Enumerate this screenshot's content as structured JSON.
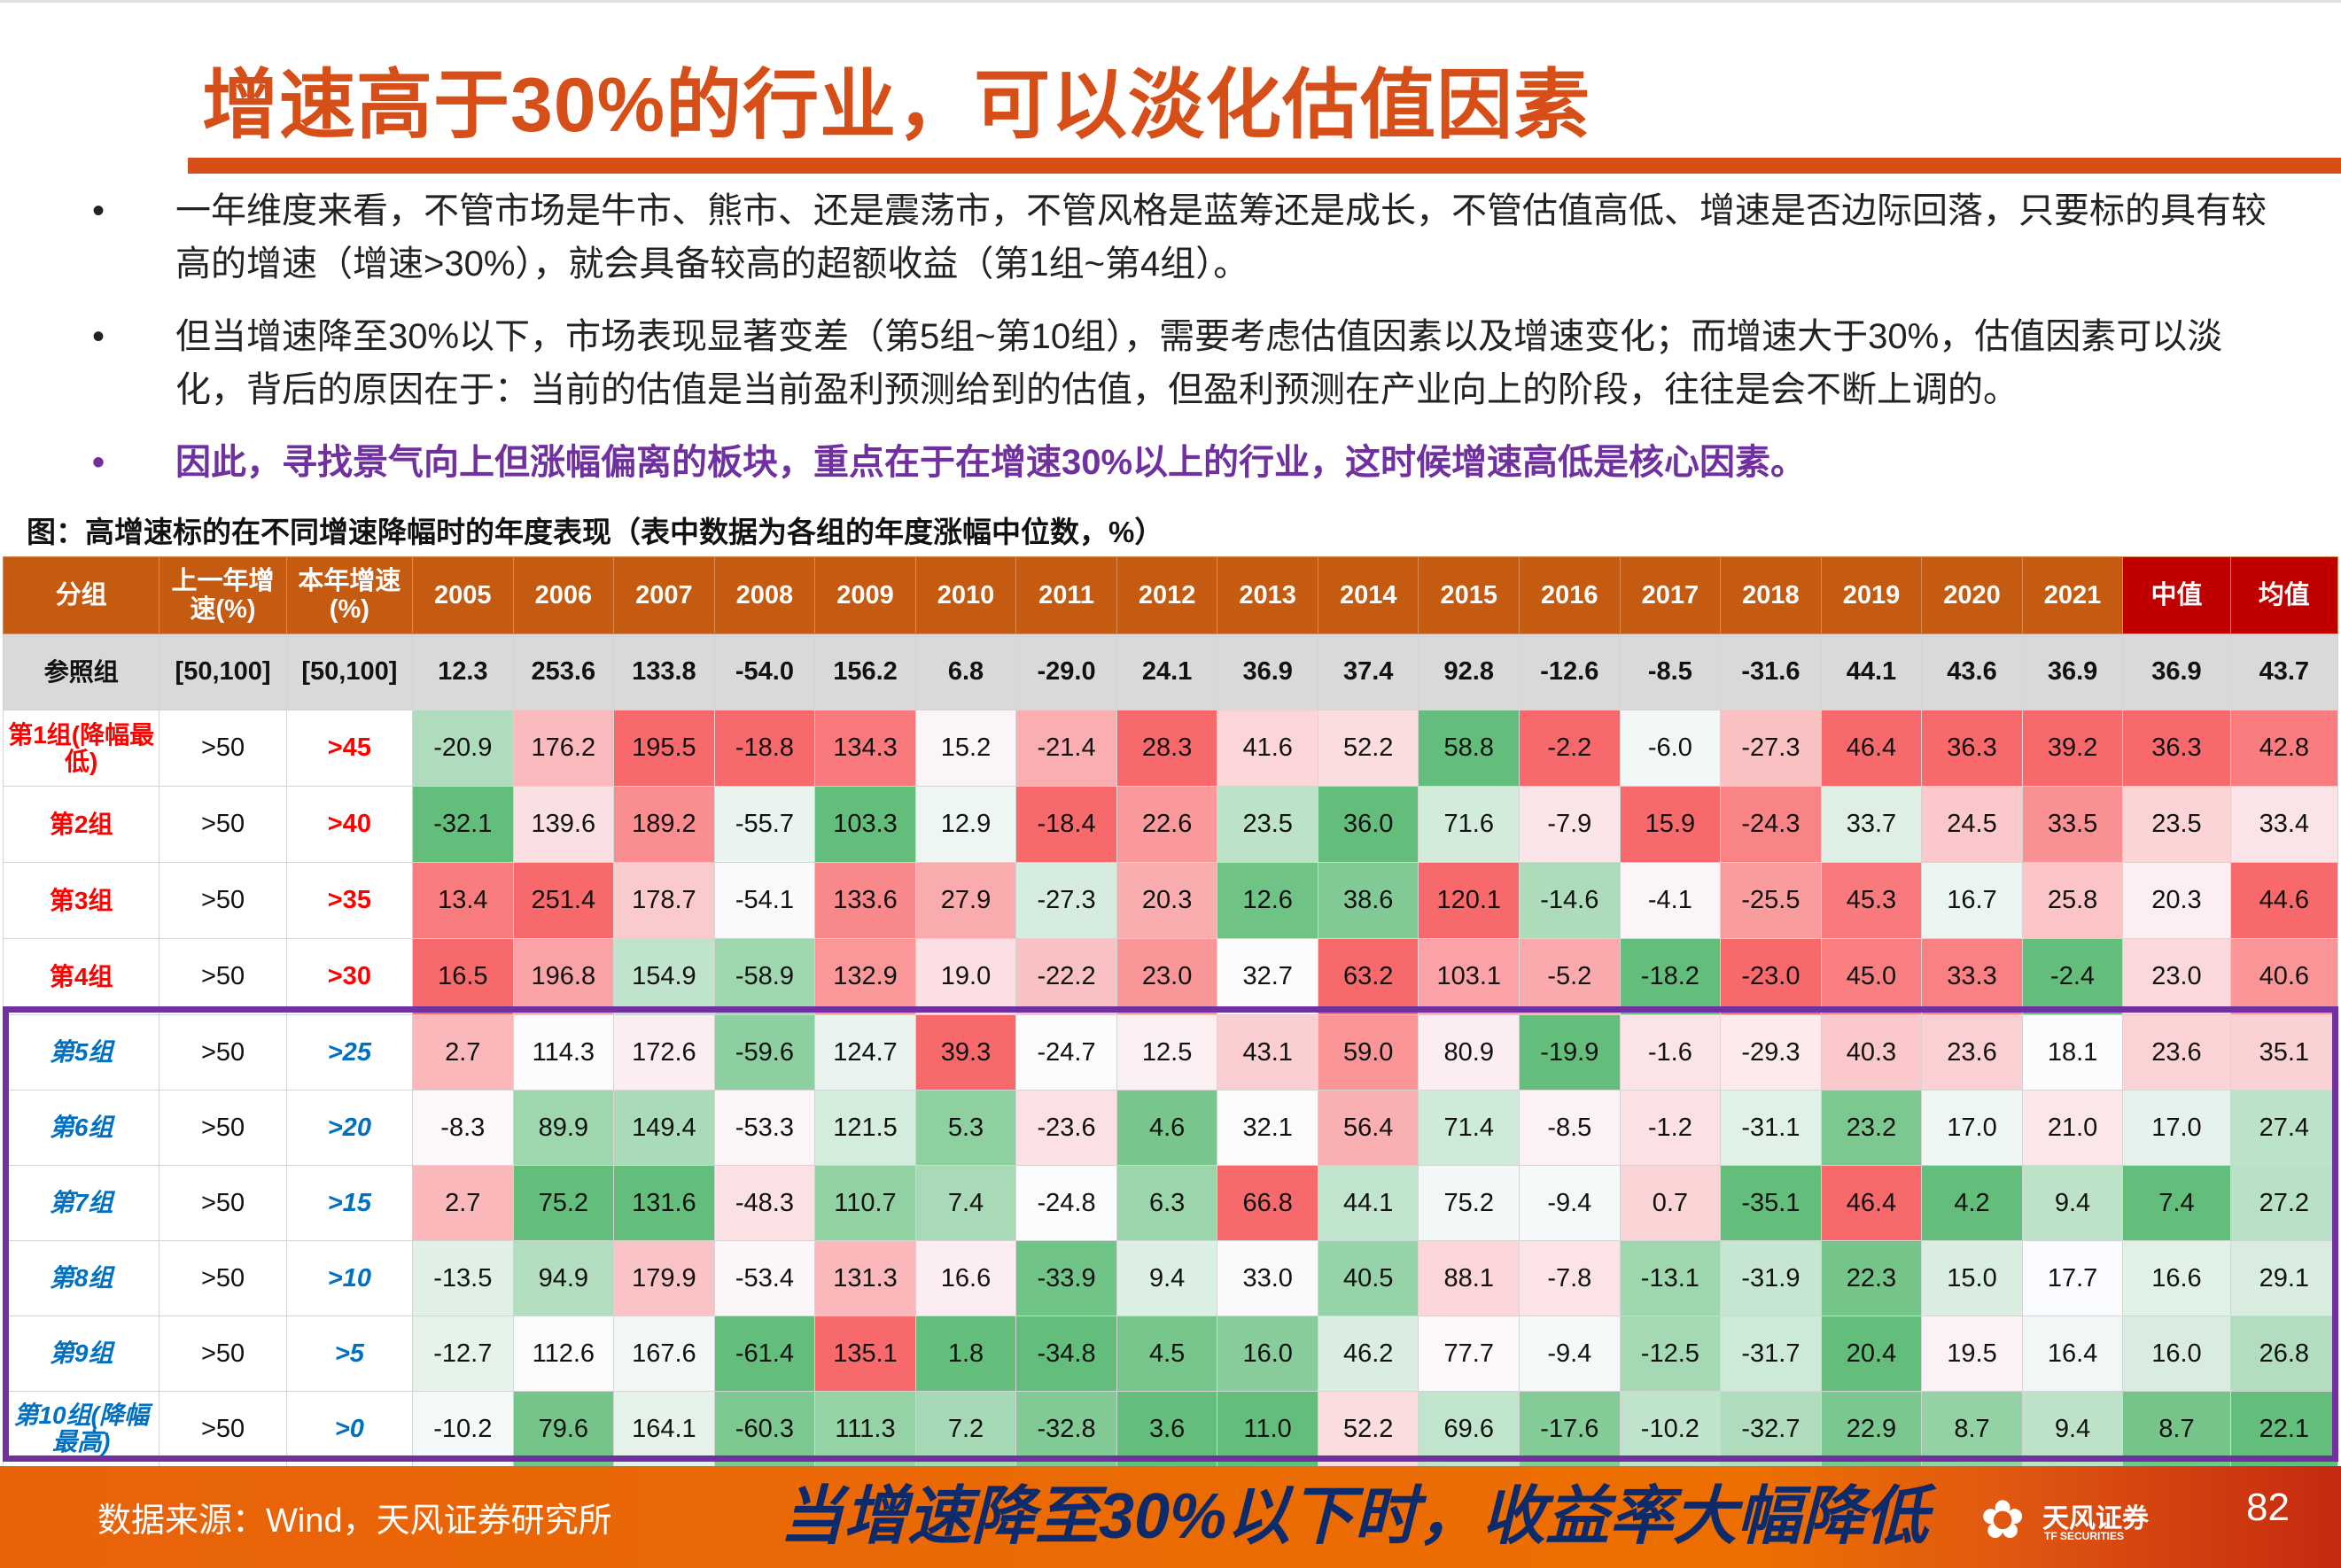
{
  "title": "增速高于30%的行业，可以淡化估值因素",
  "bullets": [
    "一年维度来看，不管市场是牛市、熊市、还是震荡市，不管风格是蓝筹还是成长，不管估值高低、增速是否边际回落，只要标的具有较高的增速（增速>30%），就会具备较高的超额收益（第1组~第4组）。",
    "但当增速降至30%以下，市场表现显著变差（第5组~第10组），需要考虑估值因素以及增速变化；而增速大于30%，估值因素可以淡化，背后的原因在于：当前的估值是当前盈利预测给到的估值，但盈利预测在产业向上的阶段，往往是会不断上调的。",
    "因此，寻找景气向上但涨幅偏离的板块，重点在于在增速30%以上的行业，这时候增速高低是核心因素。"
  ],
  "bullet_symbol": "•",
  "caption": "图：高增速标的在不同增速降幅时的年度表现（表中数据为各组的年度涨幅中位数，%）",
  "overlay_text": "当增速降至30%以下时，收益率大幅降低",
  "colors": {
    "accent": "#d64f18",
    "header": "#c55a11",
    "header_highlight": "#c00000",
    "box": "#7030a0",
    "scale_min": "#63be7b",
    "scale_mid": "#fcfcff",
    "scale_max": "#f8696b"
  },
  "table": {
    "headers": [
      "分组",
      "上一年增速(%)",
      "本年增速(%)",
      "2005",
      "2006",
      "2007",
      "2008",
      "2009",
      "2010",
      "2011",
      "2012",
      "2013",
      "2014",
      "2015",
      "2016",
      "2017",
      "2018",
      "2019",
      "2020",
      "2021",
      "中值",
      "均值"
    ],
    "reference": {
      "group": "参照组",
      "prev": "[50,100]",
      "cur": "[50,100]",
      "values": [
        "12.3",
        "253.6",
        "133.8",
        "-54.0",
        "156.2",
        "6.8",
        "-29.0",
        "24.1",
        "36.9",
        "37.4",
        "92.8",
        "-12.6",
        "-8.5",
        "-31.6",
        "44.1",
        "43.6",
        "36.9",
        "36.9",
        "43.7"
      ]
    },
    "rows": [
      {
        "group": "第1组(降幅最低)",
        "prev": ">50",
        "cur": ">45",
        "values": [
          "-20.9",
          "176.2",
          "195.5",
          "-18.8",
          "134.3",
          "15.2",
          "-21.4",
          "28.3",
          "41.6",
          "52.2",
          "58.8",
          "-2.2",
          "-6.0",
          "-27.3",
          "46.4",
          "36.3",
          "39.2",
          "36.3",
          "42.8"
        ]
      },
      {
        "group": "第2组",
        "prev": ">50",
        "cur": ">40",
        "values": [
          "-32.1",
          "139.6",
          "189.2",
          "-55.7",
          "103.3",
          "12.9",
          "-18.4",
          "22.6",
          "23.5",
          "36.0",
          "71.6",
          "-7.9",
          "15.9",
          "-24.3",
          "33.7",
          "24.5",
          "33.5",
          "23.5",
          "33.4"
        ]
      },
      {
        "group": "第3组",
        "prev": ">50",
        "cur": ">35",
        "values": [
          "13.4",
          "251.4",
          "178.7",
          "-54.1",
          "133.6",
          "27.9",
          "-27.3",
          "20.3",
          "12.6",
          "38.6",
          "120.1",
          "-14.6",
          "-4.1",
          "-25.5",
          "45.3",
          "16.7",
          "25.8",
          "20.3",
          "44.6"
        ]
      },
      {
        "group": "第4组",
        "prev": ">50",
        "cur": ">30",
        "values": [
          "16.5",
          "196.8",
          "154.9",
          "-58.9",
          "132.9",
          "19.0",
          "-22.2",
          "23.0",
          "32.7",
          "63.2",
          "103.1",
          "-5.2",
          "-18.2",
          "-23.0",
          "45.0",
          "33.3",
          "-2.4",
          "23.0",
          "40.6"
        ]
      },
      {
        "group": "第5组",
        "prev": ">50",
        "cur": ">25",
        "values": [
          "2.7",
          "114.3",
          "172.6",
          "-59.6",
          "124.7",
          "39.3",
          "-24.7",
          "12.5",
          "43.1",
          "59.0",
          "80.9",
          "-19.9",
          "-1.6",
          "-29.3",
          "40.3",
          "23.6",
          "18.1",
          "23.6",
          "35.1"
        ]
      },
      {
        "group": "第6组",
        "prev": ">50",
        "cur": ">20",
        "values": [
          "-8.3",
          "89.9",
          "149.4",
          "-53.3",
          "121.5",
          "5.3",
          "-23.6",
          "4.6",
          "32.1",
          "56.4",
          "71.4",
          "-8.5",
          "-1.2",
          "-31.1",
          "23.2",
          "17.0",
          "21.0",
          "17.0",
          "27.4"
        ]
      },
      {
        "group": "第7组",
        "prev": ">50",
        "cur": ">15",
        "values": [
          "2.7",
          "75.2",
          "131.6",
          "-48.3",
          "110.7",
          "7.4",
          "-24.8",
          "6.3",
          "66.8",
          "44.1",
          "75.2",
          "-9.4",
          "0.7",
          "-35.1",
          "46.4",
          "4.2",
          "9.4",
          "7.4",
          "27.2"
        ]
      },
      {
        "group": "第8组",
        "prev": ">50",
        "cur": ">10",
        "values": [
          "-13.5",
          "94.9",
          "179.9",
          "-53.4",
          "131.3",
          "16.6",
          "-33.9",
          "9.4",
          "33.0",
          "40.5",
          "88.1",
          "-7.8",
          "-13.1",
          "-31.9",
          "22.3",
          "15.0",
          "17.7",
          "16.6",
          "29.1"
        ]
      },
      {
        "group": "第9组",
        "prev": ">50",
        "cur": ">5",
        "values": [
          "-12.7",
          "112.6",
          "167.6",
          "-61.4",
          "135.1",
          "1.8",
          "-34.8",
          "4.5",
          "16.0",
          "46.2",
          "77.7",
          "-9.4",
          "-12.5",
          "-31.7",
          "20.4",
          "19.5",
          "16.4",
          "16.0",
          "26.8"
        ]
      },
      {
        "group": "第10组(降幅最高)",
        "prev": ">50",
        "cur": ">0",
        "values": [
          "-10.2",
          "79.6",
          "164.1",
          "-60.3",
          "111.3",
          "7.2",
          "-32.8",
          "3.6",
          "11.0",
          "52.2",
          "69.6",
          "-17.6",
          "-10.2",
          "-32.7",
          "22.9",
          "8.7",
          "9.4",
          "8.7",
          "22.1"
        ]
      }
    ]
  },
  "footer": {
    "source": "数据来源：Wind，天风证券研究所",
    "logo_cn": "天风证券",
    "logo_en": "TF SECURITIES",
    "page": "82"
  }
}
